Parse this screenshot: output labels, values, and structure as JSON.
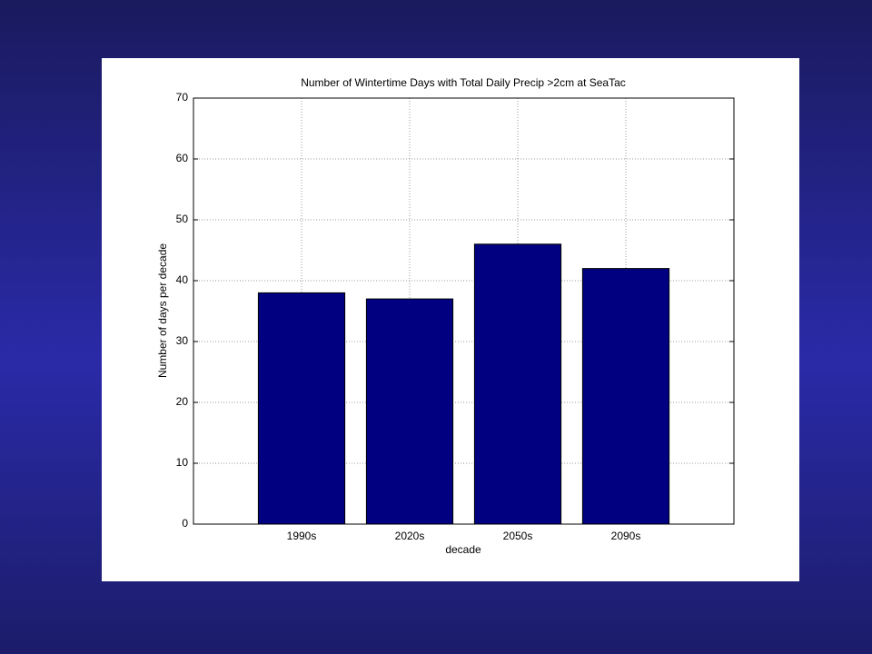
{
  "chart_data": {
    "type": "bar",
    "title": "Number of Wintertime Days with Total Daily Precip >2cm at SeaTac",
    "x_label": "decade",
    "y_label": "Number of days per decade",
    "categories": [
      "1990s",
      "2020s",
      "2050s",
      "2090s"
    ],
    "values": [
      38,
      37,
      46,
      42
    ],
    "color": "#000080",
    "ylim": [
      0,
      70
    ],
    "yticks": [
      0,
      10,
      20,
      30,
      40,
      50,
      60,
      70
    ],
    "grid": true
  }
}
